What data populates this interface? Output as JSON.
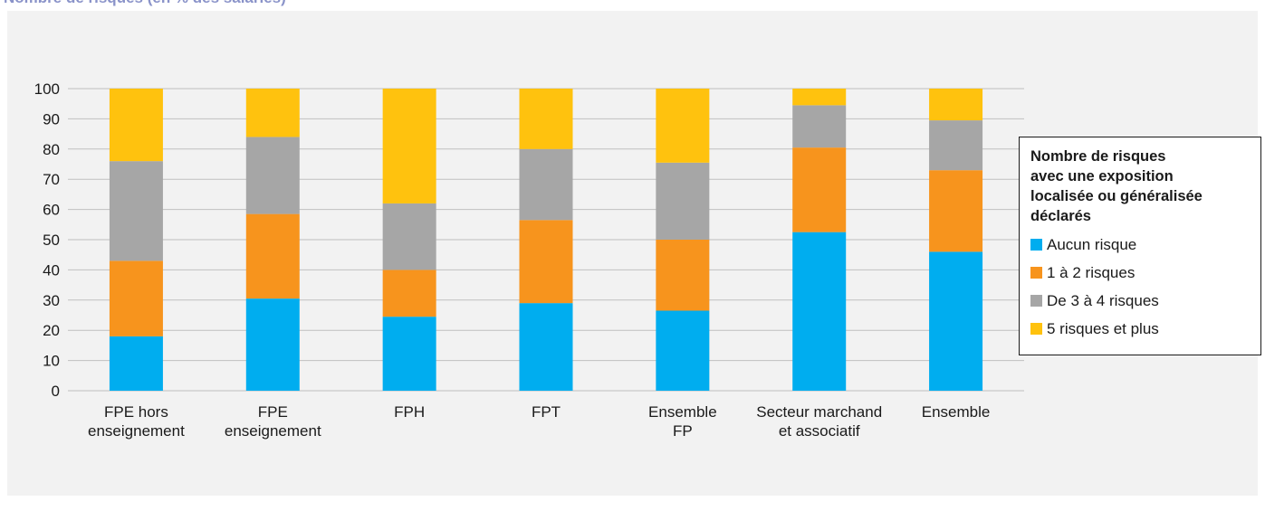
{
  "header": {
    "title": "Nombre de risques (en % des salariés)"
  },
  "chart_data": {
    "type": "bar",
    "stacked": true,
    "title": "Nombre de risques (en % des salariés)",
    "categories": [
      [
        "FPE hors",
        "enseignement"
      ],
      [
        "FPE",
        "enseignement"
      ],
      [
        "FPH"
      ],
      [
        "FPT"
      ],
      [
        "Ensemble",
        "FP"
      ],
      [
        "Secteur marchand",
        "et  associatif"
      ],
      [
        "Ensemble"
      ]
    ],
    "series": [
      {
        "name": "Aucun risque",
        "color": "#00adef",
        "values": [
          18,
          30.5,
          24.5,
          29,
          26.5,
          52.5,
          46
        ]
      },
      {
        "name": "1 à 2 risques",
        "color": "#f7941d",
        "values": [
          25,
          28,
          15.5,
          27.5,
          23.5,
          28,
          27
        ]
      },
      {
        "name": "De 3 à 4 risques",
        "color": "#a6a6a6",
        "values": [
          33,
          25.5,
          22,
          23.5,
          25.5,
          14,
          16.5
        ]
      },
      {
        "name": "5 risques et plus",
        "color": "#ffc20e",
        "values": [
          24,
          16,
          38,
          20,
          24.5,
          5.5,
          10.5
        ]
      }
    ],
    "ylim": [
      0,
      100
    ],
    "yticks": [
      0,
      10,
      20,
      30,
      40,
      50,
      60,
      70,
      80,
      90,
      100
    ],
    "grid": true,
    "legend": {
      "title": "Nombre de risques avec une exposition localisée ou généralisée déclarés",
      "title_lines": [
        "Nombre de risques",
        "avec une exposition",
        "localisée ou généralisée",
        "déclarés"
      ],
      "position": "right"
    }
  }
}
